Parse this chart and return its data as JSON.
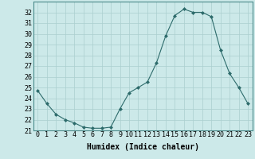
{
  "x": [
    0,
    1,
    2,
    3,
    4,
    5,
    6,
    7,
    8,
    9,
    10,
    11,
    12,
    13,
    14,
    15,
    16,
    17,
    18,
    19,
    20,
    21,
    22,
    23
  ],
  "y": [
    24.7,
    23.5,
    22.5,
    22.0,
    21.7,
    21.3,
    21.2,
    21.2,
    21.3,
    23.0,
    24.5,
    25.0,
    25.5,
    27.3,
    29.8,
    31.7,
    32.3,
    32.0,
    32.0,
    31.6,
    28.5,
    26.3,
    25.0,
    23.5
  ],
  "line_color": "#2d6b6b",
  "marker": "D",
  "marker_size": 2,
  "bg_color": "#cce9e9",
  "grid_color": "#aacfcf",
  "xlabel": "Humidex (Indice chaleur)",
  "ylim": [
    21,
    33
  ],
  "xlim": [
    -0.5,
    23.5
  ],
  "yticks": [
    21,
    22,
    23,
    24,
    25,
    26,
    27,
    28,
    29,
    30,
    31,
    32
  ],
  "xticks": [
    0,
    1,
    2,
    3,
    4,
    5,
    6,
    7,
    8,
    9,
    10,
    11,
    12,
    13,
    14,
    15,
    16,
    17,
    18,
    19,
    20,
    21,
    22,
    23
  ],
  "xlabel_fontsize": 7,
  "tick_fontsize": 6,
  "title": ""
}
